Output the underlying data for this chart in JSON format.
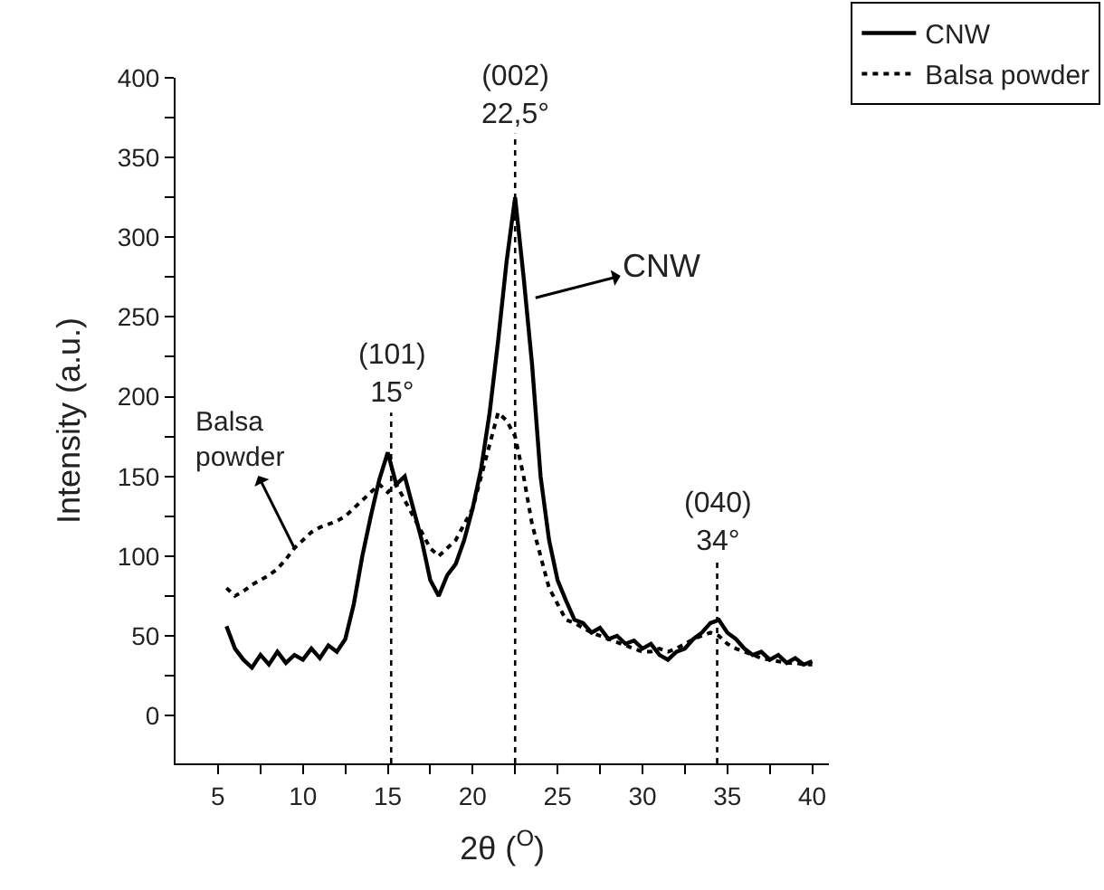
{
  "chart_data": {
    "type": "line",
    "xlabel": "2θ ($^{O}$)",
    "ylabel": "Intensity (a.u.)",
    "series": [
      {
        "name": "CNW",
        "color": "#000000",
        "line_style": "solid",
        "x": [
          5.5,
          6,
          6.5,
          7,
          7.5,
          8,
          8.5,
          9,
          9.5,
          10,
          10.5,
          11,
          11.5,
          12,
          12.5,
          13,
          13.5,
          14,
          14.5,
          15,
          15.5,
          16,
          16.5,
          17,
          17.5,
          18,
          18.5,
          19,
          19.5,
          20,
          20.5,
          21,
          21.5,
          22,
          22.5,
          23,
          23.5,
          24,
          24.5,
          25,
          25.5,
          26,
          26.5,
          27,
          27.5,
          28,
          28.5,
          29,
          29.5,
          30,
          30.5,
          31,
          31.5,
          32,
          32.5,
          33,
          33.5,
          34,
          34.5,
          35,
          35.5,
          36,
          36.5,
          37,
          37.5,
          38,
          38.5,
          39,
          39.5,
          40
        ],
        "values": [
          56,
          42,
          35,
          30,
          38,
          32,
          40,
          33,
          38,
          35,
          42,
          36,
          44,
          40,
          48,
          70,
          100,
          125,
          148,
          165,
          145,
          150,
          130,
          110,
          85,
          75,
          88,
          95,
          110,
          130,
          155,
          190,
          235,
          285,
          325,
          275,
          220,
          150,
          110,
          85,
          72,
          60,
          58,
          52,
          55,
          48,
          50,
          45,
          47,
          42,
          45,
          38,
          35,
          40,
          42,
          48,
          52,
          58,
          60,
          52,
          48,
          42,
          38,
          40,
          35,
          38,
          33,
          36,
          32,
          34
        ]
      },
      {
        "name": "Balsa powder",
        "color": "#000000",
        "line_style": "dotted",
        "x": [
          5.5,
          6,
          6.5,
          7,
          7.5,
          8,
          8.5,
          9,
          9.5,
          10,
          10.5,
          11,
          11.5,
          12,
          12.5,
          13,
          13.5,
          14,
          14.5,
          15,
          15.5,
          16,
          16.5,
          17,
          17.5,
          18,
          18.5,
          19,
          19.5,
          20,
          20.5,
          21,
          21.5,
          22,
          22.5,
          23,
          23.5,
          24,
          24.5,
          25,
          25.5,
          26,
          26.5,
          27,
          27.5,
          28,
          28.5,
          29,
          29.5,
          30,
          30.5,
          31,
          31.5,
          32,
          32.5,
          33,
          33.5,
          34,
          34.5,
          35,
          35.5,
          36,
          36.5,
          37,
          37.5,
          38,
          38.5,
          39,
          39.5,
          40
        ],
        "values": [
          80,
          75,
          78,
          82,
          85,
          88,
          92,
          98,
          105,
          110,
          115,
          118,
          120,
          122,
          125,
          130,
          135,
          140,
          145,
          140,
          145,
          135,
          125,
          115,
          105,
          100,
          105,
          110,
          120,
          130,
          150,
          170,
          190,
          185,
          175,
          150,
          120,
          100,
          80,
          70,
          60,
          58,
          55,
          52,
          50,
          48,
          46,
          44,
          42,
          40,
          40,
          42,
          40,
          42,
          45,
          48,
          50,
          52,
          50,
          45,
          42,
          40,
          38,
          36,
          35,
          34,
          33,
          33,
          32,
          32
        ]
      }
    ],
    "xlim": [
      2.5,
      41
    ],
    "xticks": [
      5,
      {
        "value": 7.5,
        "label": null
      },
      10,
      {
        "value": 12.5,
        "label": null
      },
      15,
      {
        "value": 17.5,
        "label": null
      },
      20,
      {
        "value": 22.5,
        "label": null
      },
      25,
      {
        "value": 27.5,
        "label": null
      },
      30,
      {
        "value": 32.5,
        "label": null
      },
      35,
      {
        "value": 37.5,
        "label": null
      },
      40
    ],
    "ylim": [
      -30,
      400
    ],
    "yticks": [
      0,
      {
        "value": 25,
        "label": null
      },
      50,
      {
        "value": 75,
        "label": null
      },
      100,
      {
        "value": 125,
        "label": null
      },
      150,
      {
        "value": 175,
        "label": null
      },
      200,
      {
        "value": 225,
        "label": null
      },
      250,
      {
        "value": 275,
        "label": null
      },
      300,
      {
        "value": 325,
        "label": null
      },
      350,
      {
        "value": 375,
        "label": null
      },
      400
    ],
    "ref_lines": [
      {
        "axis": "x",
        "value": 15.2,
        "color": "#000000",
        "line_style": "dotted"
      },
      {
        "axis": "x",
        "value": 22.5,
        "color": "#000000",
        "line_style": "dotted"
      },
      {
        "axis": "x",
        "value": 34.4,
        "color": "#000000",
        "line_style": "dotted"
      }
    ],
    "annotations": [
      {
        "text": "(101)\n15°",
        "x": 15.2,
        "y": 190
      },
      {
        "text": "(002)\n22,5°",
        "x": 22.5,
        "y": 365
      },
      {
        "text": "(040)\n34°",
        "x": 34.4,
        "y": 97
      },
      {
        "text": "CNW",
        "x": 23.7,
        "y": 262
      },
      {
        "text": "Balsa\npowder",
        "x": 9.5,
        "y": 105
      }
    ],
    "legend": "top right"
  }
}
